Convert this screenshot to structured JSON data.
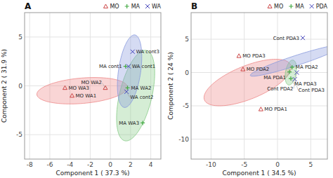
{
  "chart_data": [
    {
      "type": "scatter",
      "title": "A",
      "x_label": "Component 1 ( 37.3 %)",
      "y_label": "Component 2 ( 31.9 %)",
      "xlim": [
        -8.5,
        5.0
      ],
      "ylim": [
        -7.5,
        7.5
      ],
      "xticks": [
        -8,
        -6,
        -4,
        -2,
        0,
        2,
        4
      ],
      "yticks": [
        -5,
        0,
        5
      ],
      "grid": true,
      "legend": "upper right",
      "series": [
        {
          "name": "MO",
          "color": "#cc4444",
          "marker": "triangle",
          "x": [
            -4.5,
            -3.8,
            -0.5
          ],
          "y": [
            -0.2,
            -1.0,
            -0.2
          ],
          "labels": [
            "MO WA3",
            "MO WA1",
            "MO WA2"
          ],
          "ellipse": {
            "cx": -2.8,
            "cy": -0.5,
            "width": 9.0,
            "height": 2.6,
            "angle": 5,
            "color": "#ee8888"
          }
        },
        {
          "name": "MA",
          "color": "#44aa44",
          "marker": "plus",
          "x": [
            1.7,
            1.5,
            3.2
          ],
          "y": [
            -0.2,
            2.0,
            -3.8
          ],
          "labels": [
            "MA WA2",
            "MA cont1",
            "MA WA3"
          ],
          "ellipse": {
            "cx": 2.5,
            "cy": -1.0,
            "width": 3.2,
            "height": 9.5,
            "angle": -13,
            "color": "#88cc88"
          }
        },
        {
          "name": "WA",
          "color": "#4444bb",
          "marker": "x",
          "x": [
            2.2,
            1.8,
            1.6
          ],
          "y": [
            3.5,
            2.0,
            -0.6
          ],
          "labels": [
            "WA cont3",
            "WA cont1",
            "WA cont2"
          ],
          "ellipse": {
            "cx": 1.9,
            "cy": 1.5,
            "width": 2.2,
            "height": 7.5,
            "angle": -8,
            "color": "#8899dd"
          }
        }
      ]
    },
    {
      "type": "scatter",
      "title": "B",
      "x_label": "Component 1 ( 34.5 %)",
      "y_label": "Component 2 ( 24 %)",
      "xlim": [
        -13,
        7.5
      ],
      "ylim": [
        -13,
        9
      ],
      "xticks": [
        -10,
        -5,
        0,
        5
      ],
      "yticks": [
        -10,
        -5,
        0,
        5
      ],
      "grid": true,
      "legend": "upper right",
      "series": [
        {
          "name": "MO",
          "color": "#cc4444",
          "marker": "triangle",
          "x": [
            -5.8,
            -5.2,
            -2.5
          ],
          "y": [
            2.5,
            0.5,
            -5.5
          ],
          "labels": [
            "MO PDA3",
            "MO PDA2",
            "MO PDA1"
          ],
          "ellipse": {
            "cx": -4.5,
            "cy": -1.5,
            "width": 5.0,
            "height": 14.0,
            "angle": -68,
            "color": "#ee8888"
          }
        },
        {
          "name": "MA",
          "color": "#44aa44",
          "marker": "plus",
          "x": [
            2.2,
            1.8,
            2.0
          ],
          "y": [
            0.8,
            0.1,
            -0.9
          ],
          "labels": [
            "MA PDA2",
            "MA PDA1",
            "MA PDA3"
          ],
          "ellipse": {
            "cx": 2.0,
            "cy": 0.0,
            "width": 1.6,
            "height": 3.8,
            "angle": -10,
            "color": "#88cc88"
          }
        },
        {
          "name": "PDA",
          "color": "#4444bb",
          "marker": "x",
          "x": [
            3.8,
            2.9,
            2.6
          ],
          "y": [
            5.2,
            0.0,
            -1.0
          ],
          "labels": [
            "Cont PDA3",
            "Cont PDA2",
            "Cont PDA3"
          ],
          "ellipse": {
            "cx": 2.8,
            "cy": 1.8,
            "width": 1.5,
            "height": 14.5,
            "angle": -72,
            "color": "#8899dd"
          }
        }
      ]
    }
  ]
}
